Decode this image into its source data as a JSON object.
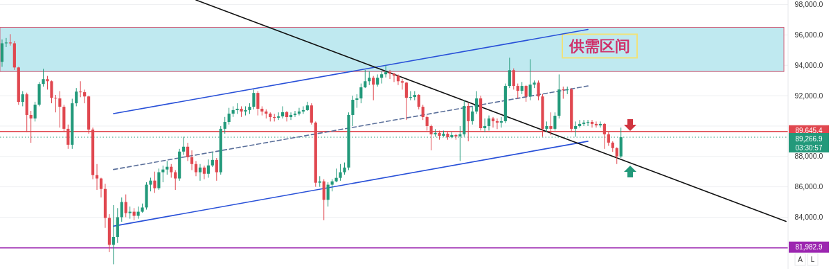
{
  "chart_data": {
    "type": "candlestick",
    "categories": [
      null,
      null,
      null,
      null,
      null,
      null,
      null,
      null,
      null,
      null,
      null,
      null,
      null,
      null,
      null,
      null,
      null,
      null,
      null,
      null,
      null,
      null,
      null,
      null,
      null,
      null,
      null,
      null,
      null,
      null,
      null,
      null,
      null,
      null,
      null,
      null,
      null,
      null,
      null,
      null,
      null,
      null,
      null,
      null,
      null,
      null,
      null,
      null,
      null,
      null,
      null,
      null,
      null,
      null,
      null,
      null,
      null,
      null,
      null,
      null,
      null,
      null,
      null,
      null,
      null,
      null,
      null,
      null,
      null,
      null,
      null,
      null,
      null,
      null,
      null,
      null,
      null,
      null,
      null,
      null,
      null,
      null,
      null,
      null,
      null,
      null,
      null,
      null,
      null,
      null,
      null,
      null,
      null,
      null,
      null,
      null,
      null,
      null,
      null,
      null,
      null,
      null,
      null,
      null,
      null,
      null,
      null,
      null,
      null,
      null,
      null,
      null,
      null,
      null,
      null,
      null,
      null,
      null,
      null,
      null,
      null,
      null,
      null,
      null,
      null,
      null,
      null,
      null,
      null,
      null,
      null,
      null,
      null,
      null,
      null,
      null,
      null,
      null,
      null,
      null,
      null,
      null,
      null,
      null,
      null,
      null,
      null,
      null,
      null,
      null,
      null,
      null,
      null,
      null,
      null,
      null,
      null,
      null,
      null,
      null,
      null,
      null,
      null,
      null,
      null,
      null,
      null,
      null,
      null,
      null,
      null,
      null,
      null,
      null,
      null,
      null,
      null,
      null,
      null,
      null,
      null,
      null,
      null,
      null,
      null,
      null,
      null,
      null,
      null,
      null,
      null
    ],
    "ohlc": [
      [
        94230,
        95700,
        93900,
        95450
      ],
      [
        95450,
        95800,
        95200,
        95500
      ],
      [
        95500,
        96050,
        95300,
        95450
      ],
      [
        95450,
        95600,
        93700,
        93860
      ],
      [
        93860,
        93900,
        91400,
        91590
      ],
      [
        91590,
        92300,
        91300,
        92090
      ],
      [
        92090,
        92200,
        89600,
        90730
      ],
      [
        90730,
        91000,
        88900,
        90500
      ],
      [
        90500,
        91600,
        90300,
        91410
      ],
      [
        91410,
        92900,
        91300,
        92770
      ],
      [
        92770,
        93770,
        92600,
        93090
      ],
      [
        93090,
        93300,
        92400,
        92950
      ],
      [
        92950,
        93000,
        91500,
        91860
      ],
      [
        91860,
        92050,
        90900,
        91820
      ],
      [
        91820,
        92300,
        89900,
        91270
      ],
      [
        91270,
        91400,
        89600,
        89820
      ],
      [
        89820,
        90100,
        88500,
        88770
      ],
      [
        88770,
        91800,
        88500,
        91500
      ],
      [
        91500,
        92500,
        91300,
        92270
      ],
      [
        92270,
        92950,
        91900,
        92230
      ],
      [
        92230,
        92400,
        91500,
        91950
      ],
      [
        91950,
        92000,
        89500,
        89770
      ],
      [
        89770,
        89900,
        86500,
        86770
      ],
      [
        86770,
        87500,
        85800,
        86550
      ],
      [
        86550,
        86600,
        85300,
        85860
      ],
      [
        85860,
        86200,
        83300,
        83950
      ],
      [
        83950,
        84200,
        81700,
        82180
      ],
      [
        82180,
        84800,
        80900,
        82700
      ],
      [
        82700,
        84600,
        82300,
        84000
      ],
      [
        84000,
        85300,
        83700,
        85000
      ],
      [
        85000,
        85500,
        84000,
        84270
      ],
      [
        84270,
        84700,
        83900,
        84360
      ],
      [
        84360,
        84600,
        83800,
        84090
      ],
      [
        84090,
        84700,
        83900,
        84360
      ],
      [
        84360,
        84900,
        84300,
        84640
      ],
      [
        84640,
        86300,
        84500,
        86140
      ],
      [
        86140,
        86600,
        85700,
        86410
      ],
      [
        86410,
        87000,
        85600,
        85910
      ],
      [
        85910,
        87200,
        85800,
        86960
      ],
      [
        86960,
        87400,
        86300,
        87140
      ],
      [
        87140,
        87700,
        86800,
        87320
      ],
      [
        87320,
        87500,
        86600,
        86960
      ],
      [
        86960,
        87100,
        85800,
        86550
      ],
      [
        86550,
        88500,
        86400,
        88320
      ],
      [
        88320,
        89300,
        88100,
        88640
      ],
      [
        88640,
        88900,
        87700,
        87950
      ],
      [
        87950,
        88400,
        87100,
        87500
      ],
      [
        87500,
        87700,
        86700,
        86960
      ],
      [
        86960,
        87500,
        86400,
        87270
      ],
      [
        87270,
        87400,
        86500,
        86860
      ],
      [
        86860,
        87800,
        86600,
        87410
      ],
      [
        87410,
        88300,
        87300,
        87770
      ],
      [
        87770,
        87900,
        86400,
        86960
      ],
      [
        86960,
        90000,
        86800,
        89820
      ],
      [
        89820,
        90600,
        89500,
        90270
      ],
      [
        90270,
        91200,
        90100,
        90820
      ],
      [
        90820,
        91300,
        90600,
        91050
      ],
      [
        91050,
        91500,
        90800,
        91140
      ],
      [
        91140,
        91300,
        90600,
        90960
      ],
      [
        90960,
        91300,
        90700,
        91050
      ],
      [
        91050,
        91500,
        90800,
        91270
      ],
      [
        91270,
        92400,
        91100,
        92180
      ],
      [
        92180,
        92300,
        90700,
        91140
      ],
      [
        91140,
        91300,
        90700,
        90960
      ],
      [
        90960,
        91100,
        90500,
        90820
      ],
      [
        90820,
        90900,
        90300,
        90590
      ],
      [
        90590,
        90800,
        90300,
        90550
      ],
      [
        90550,
        90900,
        90400,
        90640
      ],
      [
        90640,
        91300,
        90500,
        90910
      ],
      [
        90910,
        91000,
        90300,
        90590
      ],
      [
        90590,
        90900,
        90400,
        90730
      ],
      [
        90730,
        91000,
        90600,
        90820
      ],
      [
        90820,
        91200,
        90700,
        90960
      ],
      [
        90960,
        91300,
        90800,
        91050
      ],
      [
        91050,
        91600,
        91000,
        91360
      ],
      [
        91360,
        91500,
        90100,
        90230
      ],
      [
        90230,
        90300,
        86000,
        86270
      ],
      [
        86270,
        86700,
        86000,
        86360
      ],
      [
        86360,
        86500,
        83800,
        85140
      ],
      [
        85140,
        86300,
        84700,
        86140
      ],
      [
        86140,
        86500,
        85700,
        86360
      ],
      [
        86360,
        87200,
        86300,
        86590
      ],
      [
        86590,
        87500,
        86400,
        86960
      ],
      [
        86960,
        87600,
        86800,
        87270
      ],
      [
        87270,
        90900,
        87100,
        90730
      ],
      [
        90730,
        92000,
        90000,
        91730
      ],
      [
        91730,
        92100,
        91200,
        91820
      ],
      [
        91820,
        92800,
        91500,
        92550
      ],
      [
        92550,
        93700,
        92500,
        92950
      ],
      [
        92950,
        93600,
        92700,
        93180
      ],
      [
        93180,
        93300,
        91700,
        92730
      ],
      [
        92730,
        93400,
        92600,
        93180
      ],
      [
        93180,
        93600,
        92800,
        93410
      ],
      [
        93410,
        94000,
        93200,
        93550
      ],
      [
        93550,
        93700,
        93100,
        93450
      ],
      [
        93450,
        93500,
        92900,
        93320
      ],
      [
        93320,
        93400,
        92700,
        92950
      ],
      [
        92950,
        93100,
        92400,
        92860
      ],
      [
        92860,
        92900,
        90400,
        91860
      ],
      [
        91860,
        92300,
        91700,
        91910
      ],
      [
        91910,
        92300,
        91700,
        92050
      ],
      [
        92050,
        92100,
        91100,
        91270
      ],
      [
        91270,
        91400,
        90400,
        90590
      ],
      [
        90590,
        90700,
        89700,
        90000
      ],
      [
        90000,
        90100,
        88400,
        89460
      ],
      [
        89460,
        89800,
        89300,
        89550
      ],
      [
        89550,
        89700,
        89100,
        89360
      ],
      [
        89360,
        89700,
        89300,
        89500
      ],
      [
        89500,
        89600,
        89100,
        89270
      ],
      [
        89270,
        89600,
        89200,
        89410
      ],
      [
        89410,
        89500,
        89100,
        89320
      ],
      [
        89320,
        90000,
        87700,
        89460
      ],
      [
        89460,
        91700,
        89300,
        91320
      ],
      [
        91320,
        91500,
        89000,
        90320
      ],
      [
        90320,
        91300,
        90100,
        90960
      ],
      [
        90960,
        92300,
        90800,
        91820
      ],
      [
        91820,
        92000,
        89700,
        89860
      ],
      [
        89860,
        90500,
        89600,
        90000
      ],
      [
        90000,
        90700,
        89700,
        90500
      ],
      [
        90500,
        90600,
        89900,
        90320
      ],
      [
        90320,
        90500,
        89800,
        90230
      ],
      [
        90230,
        90600,
        89900,
        90320
      ],
      [
        90320,
        92800,
        90200,
        92640
      ],
      [
        92640,
        94500,
        92500,
        93680
      ],
      [
        93680,
        93800,
        92400,
        92640
      ],
      [
        92640,
        92800,
        91800,
        92320
      ],
      [
        92320,
        92900,
        92100,
        92640
      ],
      [
        92640,
        92700,
        91600,
        91950
      ],
      [
        91950,
        94400,
        91700,
        92730
      ],
      [
        92730,
        93000,
        92500,
        92860
      ],
      [
        92860,
        93000,
        91700,
        91950
      ],
      [
        91950,
        92100,
        89300,
        89820
      ],
      [
        89820,
        90300,
        89600,
        90000
      ],
      [
        90000,
        90900,
        89400,
        89820
      ],
      [
        89820,
        90900,
        89700,
        90680
      ],
      [
        90680,
        93400,
        90500,
        92410
      ],
      [
        92410,
        92600,
        91800,
        92360
      ],
      [
        92360,
        92600,
        92100,
        92410
      ],
      [
        92410,
        92500,
        89600,
        89820
      ],
      [
        89820,
        90300,
        89300,
        90000
      ],
      [
        90000,
        90400,
        89900,
        90140
      ],
      [
        90140,
        90400,
        90000,
        90230
      ],
      [
        90230,
        90400,
        90000,
        90270
      ],
      [
        90270,
        90400,
        89900,
        90140
      ],
      [
        90140,
        90300,
        89900,
        90050
      ],
      [
        90050,
        90300,
        89900,
        90140
      ],
      [
        90140,
        90200,
        88500,
        89460
      ],
      [
        89460,
        89600,
        88700,
        88910
      ],
      [
        88910,
        89000,
        88300,
        88550
      ],
      [
        88550,
        88600,
        87500,
        88000
      ],
      [
        88000,
        89900,
        87900,
        89266.9
      ],
      null,
      null,
      null,
      null,
      null,
      null,
      null,
      null,
      null,
      null,
      null,
      null,
      null,
      null,
      null,
      null,
      null,
      null,
      null,
      null,
      null,
      null,
      null,
      null,
      null,
      null,
      null,
      null,
      null,
      null,
      null,
      null,
      null,
      null,
      null,
      null,
      null,
      null,
      null,
      null
    ],
    "series": [
      {
        "type": "line",
        "color": "#2850d8",
        "values": [
          null,
          null,
          null,
          null,
          null,
          null,
          null,
          null,
          null,
          null,
          null,
          null,
          null,
          null,
          null,
          null,
          null,
          null,
          null,
          null,
          null,
          null,
          null,
          null,
          null,
          null,
          null,
          90820,
          null,
          null,
          null,
          null,
          null,
          null,
          null,
          null,
          null,
          null,
          null,
          null,
          null,
          null,
          null,
          null,
          null,
          null,
          null,
          null,
          null,
          null,
          null,
          null,
          null,
          null,
          null,
          null,
          null,
          null,
          null,
          null,
          null,
          null,
          null,
          null,
          null,
          null,
          null,
          null,
          null,
          null,
          null,
          null,
          null,
          null,
          null,
          null,
          null,
          null,
          null,
          null,
          null,
          null,
          null,
          null,
          null,
          null,
          null,
          null,
          null,
          null,
          null,
          null,
          null,
          null,
          null,
          null,
          null,
          null,
          null,
          null,
          null,
          null,
          null,
          null,
          null,
          null,
          null,
          null,
          null,
          null,
          null,
          null,
          null,
          null,
          null,
          null,
          null,
          null,
          null,
          null,
          null,
          null,
          null,
          null,
          null,
          null,
          null,
          null,
          null,
          null,
          null,
          null,
          null,
          null,
          null,
          null,
          null,
          null,
          null,
          null,
          null,
          null,
          96360,
          null,
          null,
          null,
          null,
          null,
          null,
          null,
          null,
          null,
          null,
          null,
          null,
          null,
          null,
          null,
          null,
          null,
          null,
          null,
          null,
          null,
          null,
          null,
          null,
          null,
          null,
          null,
          null,
          null,
          null,
          null,
          null,
          null,
          null,
          null,
          null,
          null,
          null,
          null,
          null,
          null,
          null,
          null,
          null,
          null,
          null,
          null,
          null
        ]
      },
      {
        "type": "line",
        "color": "#2850d8",
        "values": [
          null,
          null,
          null,
          null,
          null,
          null,
          null,
          null,
          null,
          null,
          null,
          null,
          null,
          null,
          null,
          null,
          null,
          null,
          null,
          null,
          null,
          null,
          null,
          null,
          null,
          null,
          null,
          83410,
          null,
          null,
          null,
          null,
          null,
          null,
          null,
          null,
          null,
          null,
          null,
          null,
          null,
          null,
          null,
          null,
          null,
          null,
          null,
          null,
          null,
          null,
          null,
          null,
          null,
          null,
          null,
          null,
          null,
          null,
          null,
          null,
          null,
          null,
          null,
          null,
          null,
          null,
          null,
          null,
          null,
          null,
          null,
          null,
          null,
          null,
          null,
          null,
          null,
          null,
          null,
          null,
          null,
          null,
          null,
          null,
          null,
          null,
          null,
          null,
          null,
          null,
          null,
          null,
          null,
          null,
          null,
          null,
          null,
          null,
          null,
          null,
          null,
          null,
          null,
          null,
          null,
          null,
          null,
          null,
          null,
          null,
          null,
          null,
          null,
          null,
          null,
          null,
          null,
          null,
          null,
          null,
          null,
          null,
          null,
          null,
          null,
          null,
          null,
          null,
          null,
          null,
          null,
          null,
          null,
          null,
          null,
          null,
          null,
          null,
          null,
          null,
          null,
          null,
          89000,
          null,
          null,
          null,
          null,
          null,
          null,
          null,
          null,
          null,
          null,
          null,
          null,
          null,
          null,
          null,
          null,
          null,
          null,
          null,
          null,
          null,
          null,
          null,
          null,
          null,
          null,
          null,
          null,
          null,
          null,
          null,
          null,
          null,
          null,
          null,
          null,
          null,
          null,
          null,
          null,
          null,
          null,
          null,
          null,
          null,
          null,
          null,
          null
        ]
      },
      {
        "type": "line",
        "color": "#5a6f9a",
        "line_style": "dashed",
        "values": [
          null,
          null,
          null,
          null,
          null,
          null,
          null,
          null,
          null,
          null,
          null,
          null,
          null,
          null,
          null,
          null,
          null,
          null,
          null,
          null,
          null,
          null,
          null,
          null,
          null,
          null,
          null,
          87140,
          null,
          null,
          null,
          null,
          null,
          null,
          null,
          null,
          null,
          null,
          null,
          null,
          null,
          null,
          null,
          null,
          null,
          null,
          null,
          null,
          null,
          null,
          null,
          null,
          null,
          null,
          null,
          null,
          null,
          null,
          null,
          null,
          null,
          null,
          null,
          null,
          null,
          null,
          null,
          null,
          null,
          null,
          null,
          null,
          null,
          null,
          null,
          null,
          null,
          null,
          null,
          null,
          null,
          null,
          null,
          null,
          null,
          null,
          null,
          null,
          null,
          null,
          null,
          null,
          null,
          null,
          null,
          null,
          null,
          null,
          null,
          null,
          null,
          null,
          null,
          null,
          null,
          null,
          null,
          null,
          null,
          null,
          null,
          null,
          null,
          null,
          null,
          null,
          null,
          null,
          null,
          null,
          null,
          null,
          null,
          null,
          null,
          null,
          null,
          null,
          null,
          null,
          null,
          null,
          null,
          null,
          null,
          null,
          null,
          null,
          null,
          null,
          null,
          null,
          92640,
          null,
          null,
          null,
          null,
          null,
          null,
          null,
          null,
          null,
          null,
          null,
          null,
          null,
          null,
          null,
          null,
          null,
          null,
          null,
          null,
          null,
          null,
          null,
          null,
          null,
          null,
          null,
          null,
          null,
          null,
          null,
          null,
          null,
          null,
          null,
          null,
          null,
          null,
          null,
          null,
          null,
          null,
          null,
          null,
          null,
          null,
          null,
          null
        ]
      },
      {
        "type": "line",
        "color": "#111111",
        "values": [
          null,
          null,
          null,
          null,
          null,
          null,
          null,
          null,
          null,
          null,
          null,
          null,
          null,
          null,
          null,
          null,
          null,
          null,
          null,
          null,
          null,
          null,
          null,
          null,
          null,
          null,
          null,
          null,
          null,
          null,
          null,
          null,
          null,
          null,
          null,
          null,
          null,
          null,
          null,
          null,
          null,
          null,
          null,
          null,
          null,
          null,
          null,
          98300,
          null,
          null,
          null,
          null,
          null,
          null,
          null,
          null,
          null,
          null,
          null,
          null,
          null,
          null,
          null,
          null,
          null,
          null,
          null,
          null,
          null,
          null,
          null,
          null,
          null,
          null,
          null,
          null,
          null,
          null,
          null,
          null,
          null,
          null,
          null,
          null,
          null,
          null,
          null,
          null,
          null,
          null,
          null,
          null,
          null,
          null,
          null,
          null,
          null,
          null,
          null,
          null,
          null,
          null,
          null,
          null,
          null,
          null,
          null,
          null,
          null,
          null,
          null,
          null,
          null,
          null,
          null,
          null,
          null,
          null,
          null,
          null,
          null,
          null,
          null,
          null,
          null,
          null,
          null,
          null,
          null,
          null,
          null,
          null,
          null,
          null,
          null,
          null,
          null,
          null,
          null,
          null,
          null,
          null,
          null,
          null,
          null,
          null,
          null,
          null,
          null,
          null,
          null,
          null,
          null,
          null,
          null,
          null,
          null,
          null,
          null,
          null,
          null,
          null,
          null,
          null,
          null,
          null,
          null,
          null,
          null,
          null,
          null,
          null,
          null,
          null,
          null,
          null,
          null,
          null,
          null,
          null,
          null,
          null,
          null,
          null,
          null,
          null,
          null,
          null,
          null,
          null,
          83730
        ]
      }
    ],
    "ylim": [
      80600,
      98300
    ],
    "yticks": [
      {
        "value": 84000,
        "label": "84,000.0"
      },
      {
        "value": 86000,
        "label": "86,000.0"
      },
      {
        "value": 88000,
        "label": "88,000.0"
      },
      {
        "value": 90000,
        "label": null
      },
      {
        "value": 92000,
        "label": "92,000.0"
      },
      {
        "value": 94000,
        "label": "94,000.0"
      },
      {
        "value": 96000,
        "label": "96,000.0"
      },
      {
        "value": 98000,
        "label": "98,000.0"
      }
    ],
    "tick_labels": "y",
    "grid": "y",
    "bands": [
      {
        "axis": "y",
        "from": 93590,
        "to": 96500,
        "label": "供需区间",
        "color": "#bfe9f0"
      }
    ],
    "ref_lines": [
      {
        "axis": "y",
        "value": 89645.4,
        "label": "89,645.4",
        "color": "#e0474f"
      },
      {
        "axis": "y",
        "value": 89266.9,
        "label": "89,266.9",
        "color": "#22997a",
        "line_style": "dotted"
      },
      {
        "axis": "y",
        "value": 81982.9,
        "label": "81,982.9",
        "color": "#9c27b0"
      }
    ],
    "annotations": [
      "03:30:57",
      "A",
      "L"
    ]
  }
}
